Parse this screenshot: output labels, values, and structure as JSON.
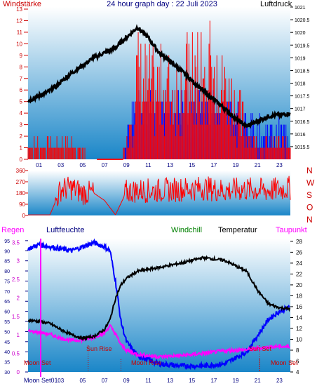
{
  "panel1": {
    "title": "24 hour graph day : 22 Juli 2023",
    "left_label": "Windstärke",
    "right_label": "Luftdruck",
    "left_ticks": [
      "0",
      "1",
      "2",
      "3",
      "4",
      "5",
      "6",
      "7",
      "8",
      "9",
      "10",
      "11",
      "12",
      "13"
    ],
    "right_ticks": [
      "1015.5",
      "1016",
      "1016.5",
      "1017",
      "1017.5",
      "1018",
      "1018.5",
      "1019",
      "1019.5",
      "1020",
      "1020.5",
      "1021"
    ],
    "x_ticks": [
      "01",
      "03",
      "05",
      "07",
      "09",
      "11",
      "13",
      "15",
      "17",
      "19",
      "21",
      "23"
    ]
  },
  "panel2": {
    "left_ticks": [
      "0",
      "90",
      "180",
      "270",
      "360"
    ],
    "right_labels": [
      "N",
      "W",
      "S",
      "O",
      "N"
    ]
  },
  "panel3": {
    "labels": {
      "regen": "Regen",
      "luftfeuchte": "Luftfeuchte",
      "windchill": "Windchill",
      "temperatur": "Temperatur",
      "taupunkt": "Taupunkt"
    },
    "left_rain_ticks": [
      "0",
      "0.5",
      "1",
      "1.5",
      "2",
      "2.5",
      "3",
      "3.5"
    ],
    "left_hum_ticks": [
      "30",
      "35",
      "40",
      "45",
      "50",
      "55",
      "60",
      "65",
      "70",
      "75",
      "80",
      "85",
      "90",
      "95"
    ],
    "right_ticks": [
      "4",
      "6",
      "8",
      "10",
      "12",
      "14",
      "16",
      "18",
      "20",
      "22",
      "24",
      "26",
      "28"
    ],
    "events": {
      "moon_set_left": "Moon Set",
      "moon_set_bottom": "Moon Set01",
      "moon_set_right": "Moon Set",
      "sun_rise": "Sun Rise",
      "moon_rise": "Moon Rise",
      "sun_set": "Sun Set"
    },
    "x_ticks": [
      "03",
      "05",
      "07",
      "09",
      "11",
      "13",
      "15",
      "17",
      "19",
      "21",
      "23"
    ]
  },
  "colors": {
    "wind": "#ff0000",
    "gust": "#0000ff",
    "pressure": "#000000",
    "humidity": "#0000ff",
    "temperature": "#000000",
    "dewpoint": "#ff00ff",
    "windchill": "#008000",
    "axis_red": "#cc0000",
    "axis_navy": "#000080",
    "bg_top": "#ffffff",
    "bg_bottom": "#1a86c8"
  },
  "chart_data": [
    {
      "type": "line",
      "title": "24 hour graph day : 22 Juli 2023",
      "x_hours": [
        0,
        2,
        4,
        6,
        8,
        9,
        10,
        11,
        12,
        14,
        16,
        18,
        19,
        20,
        21,
        22,
        24
      ],
      "series": [
        {
          "name": "Luftdruck",
          "axis": "right",
          "values": [
            1017.3,
            1017.7,
            1018.4,
            1019.0,
            1019.4,
            1019.8,
            1020.2,
            1019.8,
            1019.2,
            1018.5,
            1017.7,
            1017.0,
            1016.6,
            1016.3,
            1016.5,
            1016.7,
            1016.8
          ]
        },
        {
          "name": "Windstärke",
          "axis": "left",
          "values": [
            1,
            1,
            1,
            0,
            0,
            1,
            6,
            5,
            5,
            5,
            6,
            5,
            4,
            2,
            1,
            1,
            1
          ]
        }
      ],
      "ylim_left": [
        0,
        13
      ],
      "ylim_right": [
        1015,
        1021
      ]
    },
    {
      "type": "line",
      "x_hours": [
        0,
        2,
        3,
        4,
        5,
        6,
        7,
        8,
        9,
        10,
        12,
        14,
        16,
        18,
        20,
        22,
        24
      ],
      "series": [
        {
          "name": "Windrichtung",
          "values": [
            5,
            5,
            210,
            220,
            180,
            180,
            120,
            5,
            190,
            200,
            200,
            210,
            220,
            200,
            210,
            200,
            220
          ]
        }
      ],
      "ylim": [
        0,
        360
      ]
    },
    {
      "type": "line",
      "x_hours": [
        0,
        1,
        2,
        3,
        4,
        5,
        6,
        7,
        7.5,
        8,
        8.5,
        9,
        10,
        12,
        14,
        16,
        18,
        20,
        21,
        22,
        23,
        24
      ],
      "series": [
        {
          "name": "Luftfeuchte",
          "axis": "left",
          "values": [
            91,
            93,
            92,
            91,
            90,
            92,
            94,
            92,
            90,
            75,
            55,
            45,
            38,
            34,
            33,
            33,
            34,
            40,
            48,
            56,
            60,
            62
          ]
        },
        {
          "name": "Temperatur",
          "axis": "right",
          "values": [
            13.5,
            13.3,
            12.9,
            11.8,
            10.8,
            10.2,
            10.5,
            11.8,
            13.6,
            17.5,
            20.0,
            21.2,
            22.5,
            23.2,
            24.0,
            25.0,
            24.5,
            22.5,
            19.0,
            16.5,
            15.8,
            15.6
          ]
        },
        {
          "name": "Taupunkt",
          "axis": "right",
          "values": [
            11.5,
            11.3,
            10.9,
            10.2,
            9.8,
            9.9,
            10.4,
            11.2,
            12.5,
            11.0,
            9.0,
            8.0,
            7.2,
            6.8,
            7.0,
            7.4,
            7.9,
            8.1,
            8.3,
            8.6,
            8.7,
            8.6
          ]
        },
        {
          "name": "Regen",
          "axis": "left",
          "values": [
            0,
            0,
            0,
            0,
            0,
            0,
            0,
            0,
            0,
            0,
            0,
            0,
            0,
            0,
            0,
            0,
            0,
            0,
            0,
            0,
            0,
            0
          ]
        }
      ],
      "ylim_left": [
        30,
        95
      ],
      "ylim_right": [
        4,
        28
      ]
    }
  ]
}
